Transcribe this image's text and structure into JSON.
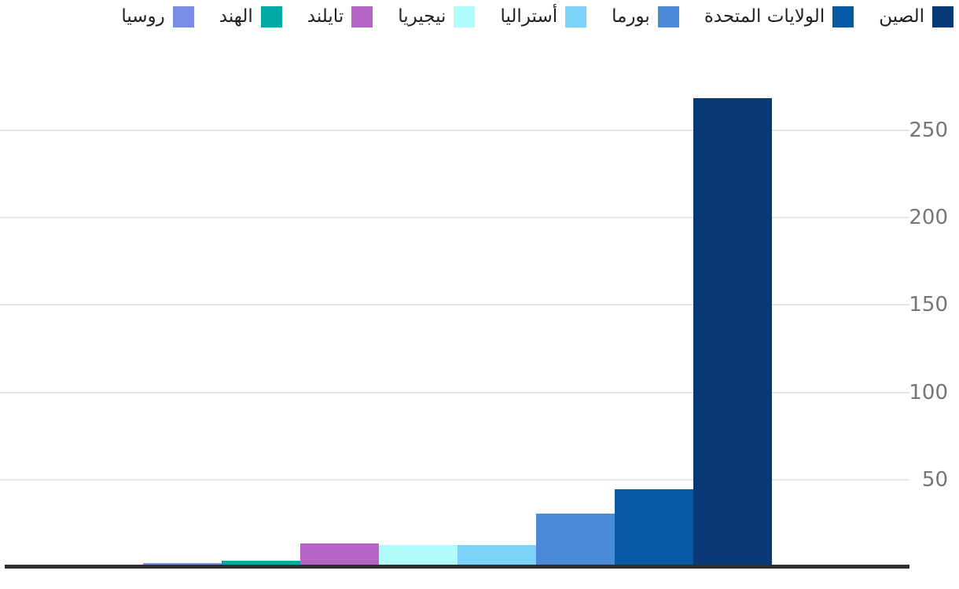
{
  "chart_data": {
    "type": "bar",
    "orientation": "vertical",
    "rtl": true,
    "title": "",
    "xlabel": "",
    "ylabel": "",
    "categories": [
      "روسيا",
      "الهند",
      "تايلند",
      "نيجيريا",
      "أستراليا",
      "بورما",
      "الولايات المتحدة",
      "الصين"
    ],
    "values": [
      2,
      3,
      13,
      12,
      12,
      30,
      44,
      268
    ],
    "colors": [
      "#7A8CE6",
      "#00A9A4",
      "#B464C4",
      "#B3FCFC",
      "#7AD2F8",
      "#4A89D8",
      "#0659A3",
      "#093877"
    ],
    "yticks": [
      50,
      100,
      150,
      200,
      250
    ],
    "ylim": [
      0,
      285
    ],
    "grid": true,
    "gridline_color": "#E6E6E6",
    "axis_color": "#2E2E2E",
    "tick_label_color": "#757575",
    "legend_text_color": "#1F1F1F",
    "legend_position": "top-right",
    "legend_order_note": "legend displayed right-to-left starting with largest series (الصين) at far right"
  }
}
